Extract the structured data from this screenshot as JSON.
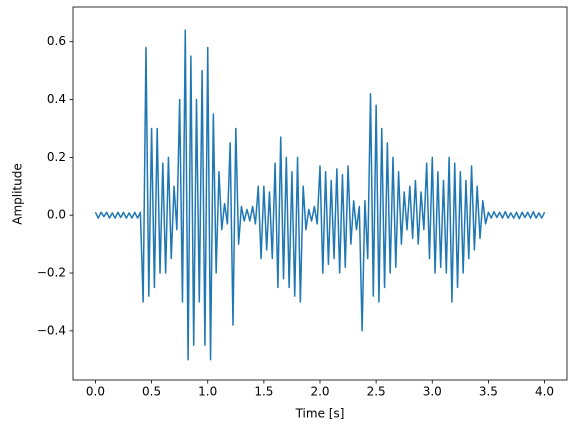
{
  "chart_data": {
    "type": "line",
    "xlabel": "Time [s]",
    "ylabel": "Amplitude",
    "xlim": [
      -0.2,
      4.2
    ],
    "ylim": [
      -0.57,
      0.72
    ],
    "xticks": [
      {
        "value": 0,
        "label": "0.0"
      },
      0.5,
      {
        "value": 1,
        "label": "1.0"
      },
      1.5,
      {
        "value": 2,
        "label": "2.0"
      },
      2.5,
      {
        "value": 3,
        "label": "3.0"
      },
      3.5,
      {
        "value": 4,
        "label": "4.0"
      }
    ],
    "yticks": [
      {
        "value": -0.4,
        "label": "−0.4"
      },
      {
        "value": -0.2,
        "label": "−0.2"
      },
      {
        "value": 0,
        "label": "0.0"
      },
      0.2,
      0.4,
      0.6
    ],
    "grid": false,
    "series": [
      {
        "color": "#1f77b4",
        "x": [
          0,
          0.025,
          0.05,
          0.075,
          0.1,
          0.125,
          0.15,
          0.175,
          0.2,
          0.225,
          0.25,
          0.275,
          0.3,
          0.325,
          0.35,
          0.375,
          0.4,
          0.425,
          0.45,
          0.475,
          0.5,
          0.525,
          0.55,
          0.575,
          0.6,
          0.625,
          0.65,
          0.675,
          0.7,
          0.725,
          0.75,
          0.775,
          0.8,
          0.825,
          0.85,
          0.875,
          0.9,
          0.925,
          0.95,
          0.975,
          1.0,
          1.025,
          1.05,
          1.075,
          1.1,
          1.125,
          1.15,
          1.175,
          1.2,
          1.225,
          1.25,
          1.275,
          1.3,
          1.325,
          1.35,
          1.375,
          1.4,
          1.425,
          1.45,
          1.475,
          1.5,
          1.525,
          1.55,
          1.575,
          1.6,
          1.625,
          1.65,
          1.675,
          1.7,
          1.725,
          1.75,
          1.775,
          1.8,
          1.825,
          1.85,
          1.875,
          1.9,
          1.925,
          1.95,
          1.975,
          2.0,
          2.025,
          2.05,
          2.075,
          2.1,
          2.125,
          2.15,
          2.175,
          2.2,
          2.225,
          2.25,
          2.275,
          2.3,
          2.325,
          2.35,
          2.375,
          2.4,
          2.425,
          2.45,
          2.475,
          2.5,
          2.525,
          2.55,
          2.575,
          2.6,
          2.625,
          2.65,
          2.675,
          2.7,
          2.725,
          2.75,
          2.775,
          2.8,
          2.825,
          2.85,
          2.875,
          2.9,
          2.925,
          2.95,
          2.975,
          3.0,
          3.025,
          3.05,
          3.075,
          3.1,
          3.125,
          3.15,
          3.175,
          3.2,
          3.225,
          3.25,
          3.275,
          3.3,
          3.325,
          3.35,
          3.375,
          3.4,
          3.425,
          3.45,
          3.475,
          3.5,
          3.525,
          3.55,
          3.575,
          3.6,
          3.625,
          3.65,
          3.675,
          3.7,
          3.725,
          3.75,
          3.775,
          3.8,
          3.825,
          3.85,
          3.875,
          3.9,
          3.925,
          3.95,
          3.975,
          4.0
        ],
        "values": [
          0.01,
          -0.01,
          0.01,
          -0.005,
          0.01,
          -0.01,
          0.008,
          -0.01,
          0.01,
          -0.008,
          0.01,
          -0.01,
          0.008,
          -0.01,
          0.01,
          -0.01,
          0.01,
          -0.3,
          0.58,
          -0.28,
          0.3,
          -0.25,
          0.3,
          -0.2,
          0.18,
          -0.2,
          0.2,
          -0.15,
          0.1,
          -0.05,
          0.4,
          -0.3,
          0.64,
          -0.5,
          0.55,
          -0.45,
          0.4,
          -0.3,
          0.5,
          -0.45,
          0.58,
          -0.5,
          0.35,
          -0.2,
          0.15,
          -0.05,
          0.04,
          -0.03,
          0.25,
          -0.38,
          0.3,
          -0.1,
          0.03,
          -0.02,
          0.02,
          -0.02,
          0.03,
          -0.03,
          0.1,
          -0.15,
          0.1,
          -0.12,
          0.08,
          -0.15,
          0.18,
          -0.25,
          0.27,
          -0.22,
          0.2,
          -0.25,
          0.15,
          -0.28,
          0.2,
          -0.3,
          0.1,
          -0.05,
          0.02,
          -0.02,
          0.03,
          -0.03,
          0.17,
          -0.2,
          0.15,
          -0.17,
          0.12,
          -0.15,
          0.16,
          -0.2,
          0.14,
          -0.18,
          0.17,
          -0.1,
          0.05,
          -0.05,
          0.03,
          -0.4,
          0.05,
          -0.15,
          0.42,
          -0.28,
          0.38,
          -0.3,
          0.3,
          -0.25,
          0.25,
          -0.2,
          0.2,
          -0.18,
          0.15,
          -0.1,
          0.08,
          -0.05,
          0.1,
          -0.08,
          0.12,
          -0.1,
          0.08,
          -0.05,
          0.18,
          -0.15,
          0.2,
          -0.2,
          0.15,
          -0.18,
          0.12,
          -0.2,
          0.2,
          -0.3,
          0.18,
          -0.25,
          0.15,
          -0.2,
          0.12,
          -0.15,
          0.17,
          -0.12,
          0.1,
          -0.08,
          0.05,
          -0.03,
          0.01,
          -0.01,
          0.012,
          -0.008,
          0.01,
          -0.01,
          0.012,
          -0.01,
          0.008,
          -0.01,
          0.01,
          -0.012,
          0.01,
          -0.008,
          0.01,
          -0.01,
          0.012,
          -0.01,
          0.008,
          -0.01,
          0.01
        ]
      }
    ]
  }
}
